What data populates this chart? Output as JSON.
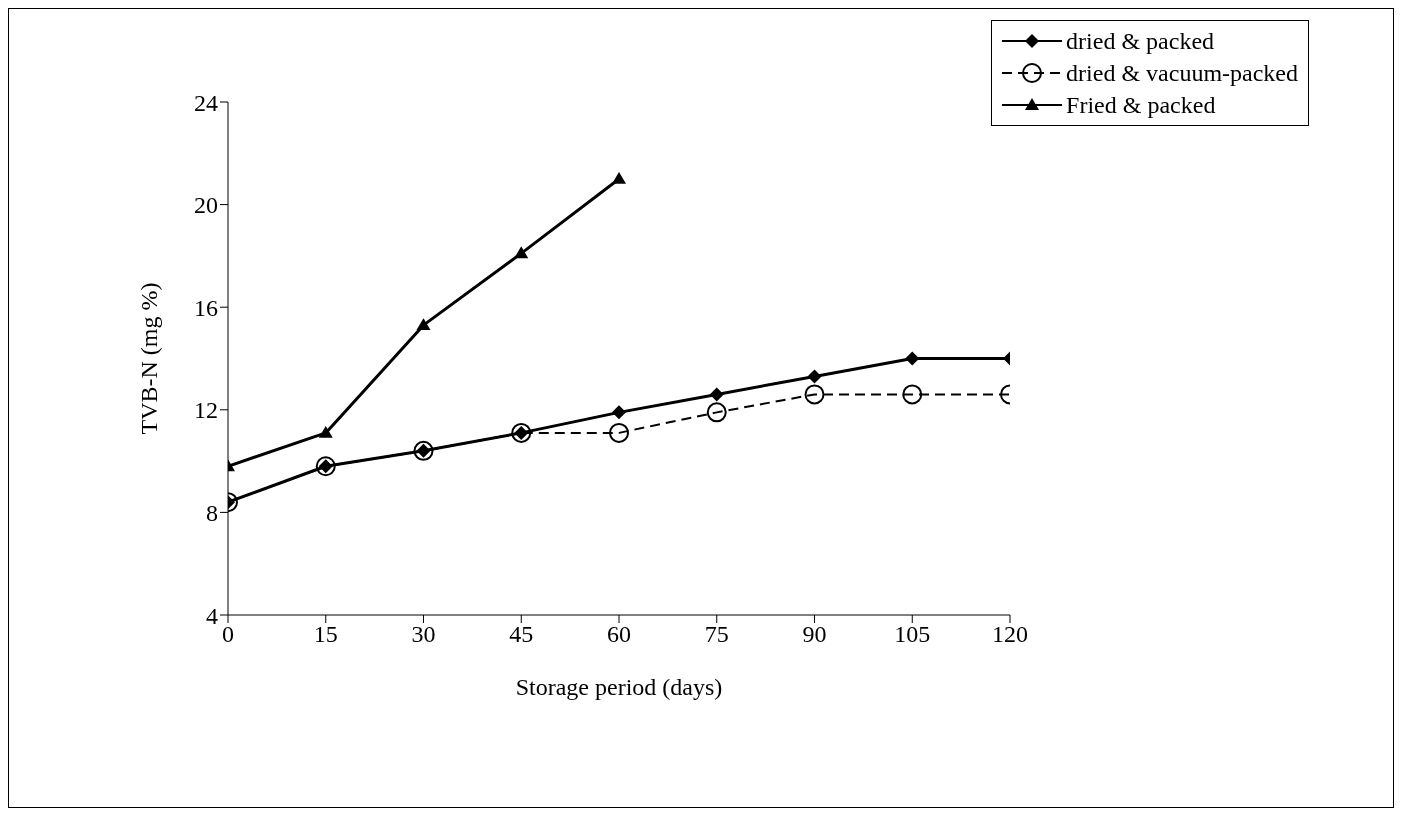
{
  "chart_data": {
    "type": "line",
    "xlabel": "Storage period (days)",
    "ylabel": "TVB-N (mg %)",
    "x": [
      0,
      15,
      30,
      45,
      60,
      75,
      90,
      105,
      120
    ],
    "xlim": [
      0,
      120
    ],
    "xticks": [
      0,
      15,
      30,
      45,
      60,
      75,
      90,
      105,
      120
    ],
    "ylim": [
      4,
      24
    ],
    "yticks": [
      4,
      8,
      12,
      16,
      20,
      24
    ],
    "grid": false,
    "legend": "top right",
    "series": [
      {
        "name": "dried & packed",
        "color": "#000000",
        "marker": "diamond",
        "line_style": "solid",
        "values": [
          8.4,
          9.8,
          10.4,
          11.1,
          11.9,
          12.6,
          13.3,
          14.0,
          14.0
        ]
      },
      {
        "name": "dried & vacuum-packed",
        "color": "#000000",
        "marker": "circle",
        "line_style": "dashed",
        "values": [
          8.4,
          9.8,
          10.4,
          11.1,
          11.1,
          11.9,
          12.6,
          12.6,
          12.6
        ]
      },
      {
        "name": "Fried & packed",
        "color": "#000000",
        "marker": "triangle",
        "line_style": "solid",
        "values": [
          9.8,
          11.1,
          15.3,
          18.1,
          21.0,
          null,
          null,
          null,
          null
        ]
      }
    ]
  }
}
